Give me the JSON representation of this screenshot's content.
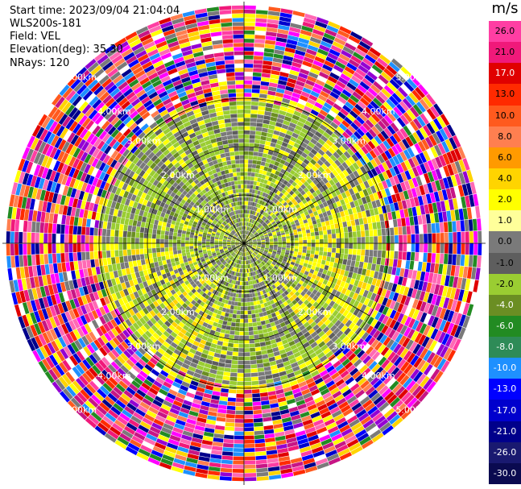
{
  "info": {
    "start_time": "Start time: 2023/09/04 21:04:04",
    "station": "WLS200s-181",
    "field": "Field: VEL",
    "elevation": "Elevation(deg): 35.30",
    "nrays": "NRays: 120"
  },
  "colorbar": {
    "unit": "m/s",
    "labels": [
      "26.0",
      "21.0",
      "17.0",
      "13.0",
      "10.0",
      "8.0",
      "6.0",
      "4.0",
      "2.0",
      "1.0",
      "0.0",
      "-1.0",
      "-2.0",
      "-4.0",
      "-6.0",
      "-8.0",
      "-10.0",
      "-13.0",
      "-17.0",
      "-21.0",
      "-26.0",
      "-30.0"
    ],
    "colors": [
      "#ff3ea3",
      "#f0197a",
      "#e00000",
      "#ff2a00",
      "#ff5a1e",
      "#ff7f50",
      "#ff9a00",
      "#ffd400",
      "#ffff00",
      "#ffff9a",
      "#7a7a7a",
      "#5e5e5e",
      "#9acd32",
      "#6b8e23",
      "#228b22",
      "#2e8b57",
      "#1e90ff",
      "#0000ff",
      "#0000cd",
      "#00008b",
      "#191970",
      "#0a0a50"
    ]
  },
  "ppi": {
    "rays": 120,
    "max_range_km": 6.0,
    "inner_labels": [
      "1.00km",
      "2.00km",
      "3.00km"
    ],
    "outer_labels": [
      "4.00km",
      "5.00km"
    ]
  }
}
